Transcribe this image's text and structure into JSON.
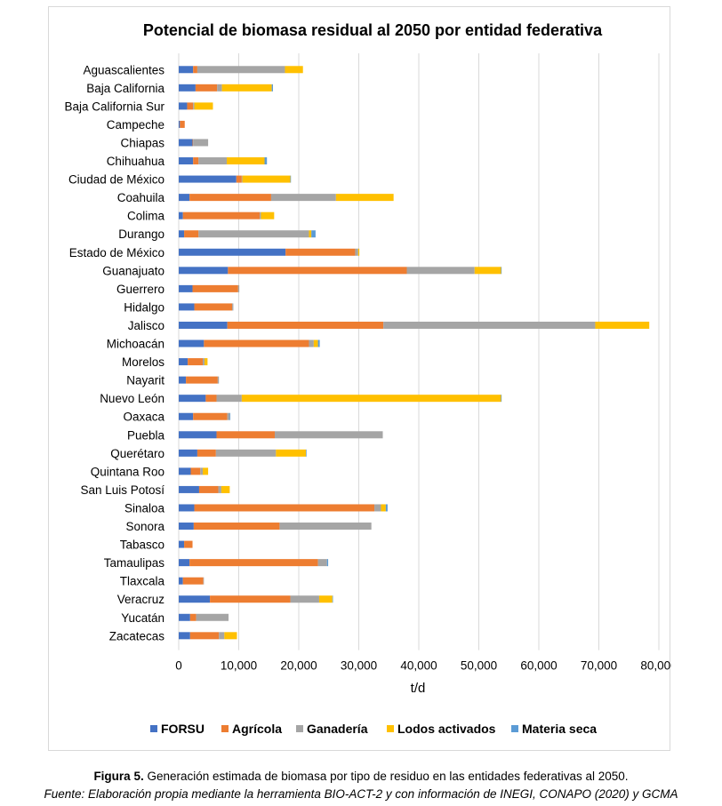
{
  "chart_data": {
    "type": "bar",
    "orientation": "horizontal",
    "stacked": true,
    "title": "Potencial de biomasa residual al 2050 por entidad federativa",
    "xlabel": "t/d",
    "ylabel": "",
    "xlim": [
      0,
      80000
    ],
    "xticks": [
      0,
      10000,
      20000,
      30000,
      40000,
      50000,
      60000,
      70000,
      80000
    ],
    "xtick_labels": [
      "0",
      "10,000",
      "20,000",
      "30,000",
      "40,000",
      "50,000",
      "60,000",
      "70,000",
      "80,000"
    ],
    "grid": "vertical",
    "legend_position": "bottom",
    "categories": [
      "Aguascalientes",
      "Baja California",
      "Baja California Sur",
      "Campeche",
      "Chiapas",
      "Chihuahua",
      "Ciudad de México",
      "Coahuila",
      "Colima",
      "Durango",
      "Estado de México",
      "Guanajuato",
      "Guerrero",
      "Hidalgo",
      "Jalisco",
      "Michoacán",
      "Morelos",
      "Nayarit",
      "Nuevo León",
      "Oaxaca",
      "Puebla",
      "Querétaro",
      "Quintana Roo",
      "San Luis Potosí",
      "Sinaloa",
      "Sonora",
      "Tabasco",
      "Tamaulipas",
      "Tlaxcala",
      "Veracruz",
      "Yucatán",
      "Zacatecas"
    ],
    "series": [
      {
        "name": "FORSU",
        "color": "#4472C4",
        "values": [
          2400,
          2800,
          1400,
          200,
          2300,
          2400,
          9600,
          1800,
          700,
          900,
          17800,
          8200,
          2300,
          2600,
          8100,
          4200,
          1500,
          1200,
          4500,
          2400,
          6300,
          3100,
          2000,
          3400,
          2600,
          2500,
          900,
          1800,
          700,
          5200,
          1900,
          1900
        ]
      },
      {
        "name": "Agrícola",
        "color": "#ED7D31",
        "values": [
          700,
          3600,
          1000,
          800,
          100,
          900,
          900,
          13600,
          12800,
          2400,
          11600,
          29800,
          7600,
          6300,
          26000,
          17500,
          2500,
          5300,
          1800,
          5700,
          9700,
          3100,
          1600,
          3200,
          30000,
          14300,
          1400,
          21400,
          3400,
          13400,
          1000,
          4800
        ]
      },
      {
        "name": "Ganadería",
        "color": "#A5A5A5",
        "values": [
          14600,
          800,
          200,
          0,
          2500,
          4700,
          100,
          10800,
          200,
          18400,
          500,
          11300,
          200,
          200,
          35300,
          800,
          300,
          200,
          4200,
          400,
          18000,
          10000,
          400,
          500,
          1100,
          15300,
          0,
          1500,
          100,
          4800,
          5400,
          900
        ]
      },
      {
        "name": "Lodos activados",
        "color": "#FFC000",
        "values": [
          3000,
          8300,
          3100,
          0,
          0,
          6300,
          8000,
          9600,
          2200,
          400,
          200,
          4400,
          0,
          0,
          9000,
          700,
          500,
          0,
          43200,
          0,
          0,
          5000,
          900,
          1400,
          800,
          0,
          0,
          0,
          0,
          2200,
          0,
          2100
        ]
      },
      {
        "name": "Materia seca",
        "color": "#5B9BD5",
        "values": [
          0,
          200,
          0,
          0,
          0,
          400,
          100,
          0,
          0,
          700,
          0,
          100,
          0,
          0,
          0,
          300,
          0,
          0,
          100,
          100,
          0,
          100,
          0,
          0,
          300,
          0,
          0,
          200,
          0,
          100,
          0,
          0
        ]
      }
    ]
  },
  "caption": {
    "figure_label": "Figura 5.",
    "figure_text": " Generación estimada de biomasa por tipo de residuo en las entidades federativas al 2050.",
    "source": "Fuente: Elaboración propia mediante la herramienta BIO-ACT-2 y con información de INEGI, CONAPO (2020) y GCMA"
  }
}
